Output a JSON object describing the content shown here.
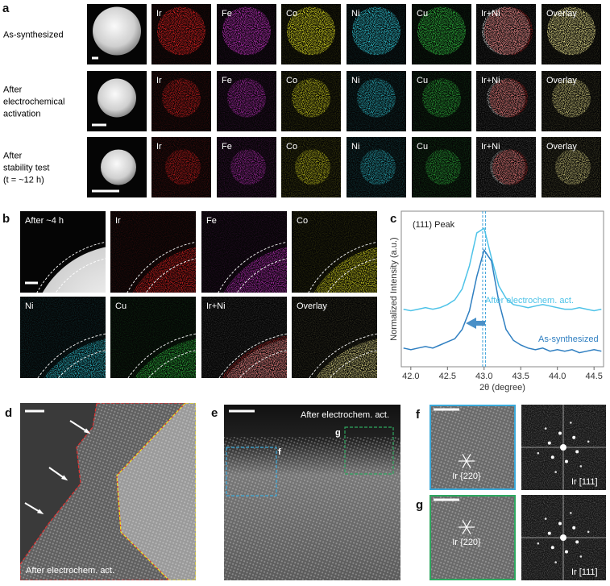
{
  "figure": {
    "a": {
      "label": "a",
      "rows": [
        {
          "lines": [
            "As-synthesized"
          ]
        },
        {
          "lines": [
            "After",
            "electrochemical",
            "activation"
          ]
        },
        {
          "lines": [
            "After",
            "stability test",
            "(t = ~12 h)"
          ]
        }
      ],
      "columns": [
        "Ir",
        "Fe",
        "Co",
        "Ni",
        "Cu",
        "Ir+Ni",
        "Overlay"
      ]
    },
    "b": {
      "label": "b",
      "tiles": [
        "After ~4 h",
        "Ir",
        "Fe",
        "Co",
        "Ni",
        "Cu",
        "Ir+Ni",
        "Overlay"
      ]
    },
    "c": {
      "label": "c"
    },
    "d": {
      "label": "d",
      "caption": "After electrochem. act."
    },
    "e": {
      "label": "e",
      "caption": "After electrochem. act.",
      "insets": [
        "f",
        "g"
      ]
    },
    "f": {
      "label": "f",
      "plane": "Ir {220}",
      "zone": "Ir [111]"
    },
    "g": {
      "label": "g",
      "plane": "Ir {220}",
      "zone": "Ir [111]"
    }
  },
  "chart_data": {
    "type": "line",
    "title": "(111) Peak",
    "x_label": "2θ (degree)",
    "y_label": "Normalized Intensity (a.u.)",
    "x": [
      41.9,
      42.0,
      42.1,
      42.2,
      42.3,
      42.4,
      42.5,
      42.6,
      42.7,
      42.8,
      42.9,
      43.0,
      43.1,
      43.2,
      43.3,
      43.4,
      43.5,
      43.6,
      43.7,
      43.8,
      43.9,
      44.0,
      44.1,
      44.2,
      44.3,
      44.4,
      44.5,
      44.6
    ],
    "series": [
      {
        "name": "After electrochem. act.",
        "color": "#4ec3e8",
        "values": [
          0.37,
          0.36,
          0.37,
          0.38,
          0.37,
          0.38,
          0.4,
          0.43,
          0.5,
          0.65,
          0.86,
          0.89,
          0.7,
          0.52,
          0.44,
          0.4,
          0.39,
          0.38,
          0.39,
          0.4,
          0.39,
          0.38,
          0.37,
          0.37,
          0.38,
          0.37,
          0.36,
          0.37
        ]
      },
      {
        "name": "As-synthesized",
        "color": "#2f7fc1",
        "values": [
          0.12,
          0.11,
          0.12,
          0.13,
          0.12,
          0.14,
          0.16,
          0.18,
          0.24,
          0.36,
          0.58,
          0.75,
          0.68,
          0.42,
          0.24,
          0.17,
          0.14,
          0.12,
          0.11,
          0.12,
          0.1,
          0.11,
          0.1,
          0.11,
          0.09,
          0.1,
          0.11,
          0.1
        ]
      }
    ],
    "reference_lines": [
      42.98,
      43.02
    ],
    "reference_color": "#3aa0d8",
    "xlim": [
      41.87,
      44.63
    ],
    "ylim": [
      0,
      1
    ],
    "xticks": [
      {
        "value": 42,
        "label": "42.0"
      },
      42.5,
      {
        "value": 43,
        "label": "43.0"
      },
      43.5,
      {
        "value": 44,
        "label": "44.0"
      },
      44.5
    ]
  }
}
